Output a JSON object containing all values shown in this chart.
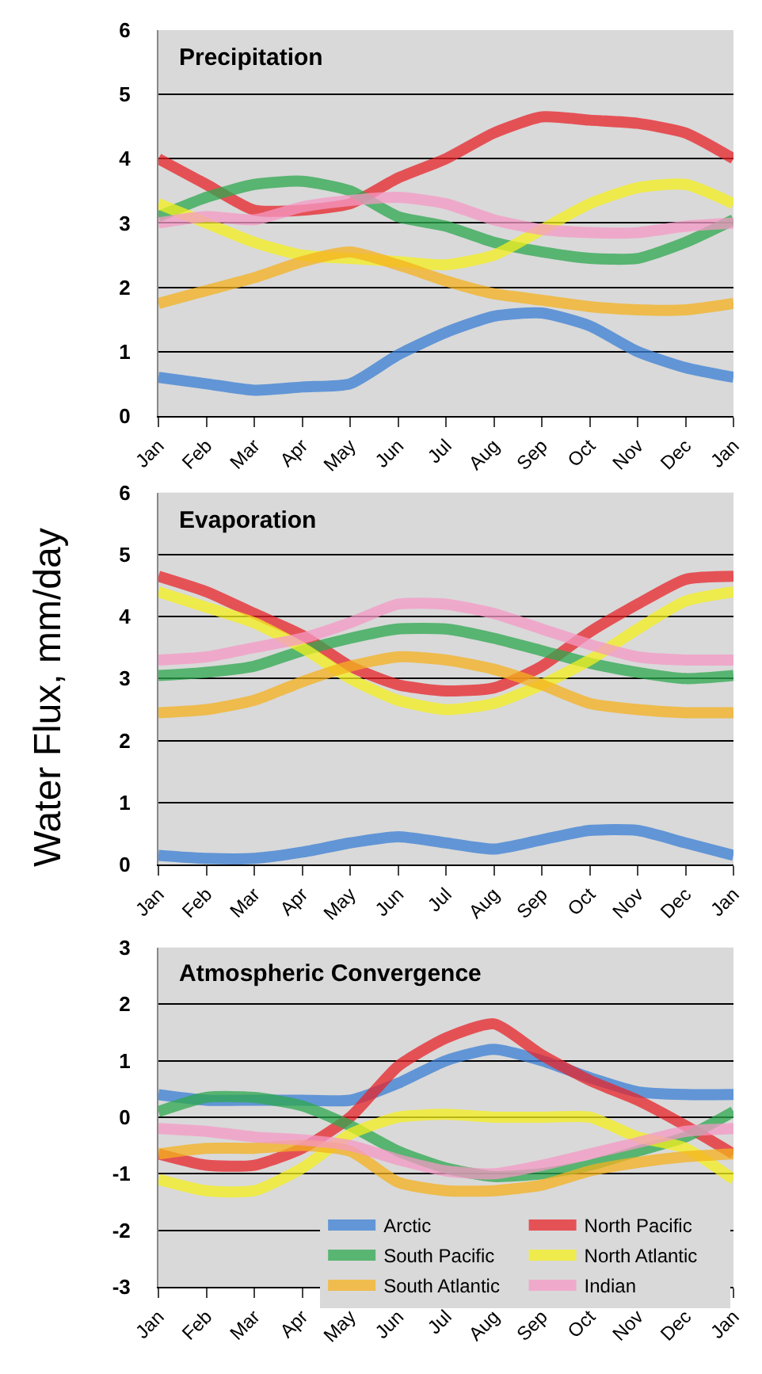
{
  "chart_data": [
    {
      "type": "line",
      "title": "Precipitation",
      "categories": [
        "Jan",
        "Feb",
        "Mar",
        "Apr",
        "May",
        "Jun",
        "Jul",
        "Aug",
        "Sep",
        "Oct",
        "Nov",
        "Dec",
        "Jan"
      ],
      "ylim": [
        0,
        6
      ],
      "yticks": [
        0,
        1,
        2,
        3,
        4,
        5,
        6
      ],
      "grid": "y",
      "marker": "none",
      "legend": false,
      "series": [
        {
          "color": "#3a7fd5",
          "values": [
            0.6,
            0.5,
            0.4,
            0.45,
            0.5,
            0.95,
            1.3,
            1.55,
            1.6,
            1.4,
            1.0,
            0.75,
            0.6
          ]
        },
        {
          "color": "#e8242a",
          "values": [
            4.0,
            3.6,
            3.2,
            3.2,
            3.3,
            3.7,
            4.0,
            4.4,
            4.65,
            4.6,
            4.55,
            4.4,
            4.0
          ]
        },
        {
          "color": "#2ea84f",
          "values": [
            3.1,
            3.4,
            3.6,
            3.65,
            3.5,
            3.1,
            2.95,
            2.7,
            2.55,
            2.45,
            2.45,
            2.7,
            3.05
          ]
        },
        {
          "color": "#f5f01e",
          "values": [
            3.3,
            3.0,
            2.7,
            2.5,
            2.45,
            2.4,
            2.35,
            2.5,
            2.9,
            3.3,
            3.55,
            3.6,
            3.3
          ]
        },
        {
          "color": "#f5b21e",
          "values": [
            1.75,
            1.95,
            2.15,
            2.4,
            2.55,
            2.35,
            2.1,
            1.9,
            1.8,
            1.7,
            1.65,
            1.65,
            1.75
          ]
        },
        {
          "color": "#f59ac6",
          "values": [
            3.0,
            3.1,
            3.05,
            3.25,
            3.35,
            3.4,
            3.3,
            3.05,
            2.9,
            2.85,
            2.85,
            2.95,
            3.0
          ]
        }
      ]
    },
    {
      "type": "line",
      "title": "Evaporation",
      "ylabel": "Water Flux, mm/day",
      "categories": [
        "Jan",
        "Feb",
        "Mar",
        "Apr",
        "May",
        "Jun",
        "Jul",
        "Aug",
        "Sep",
        "Oct",
        "Nov",
        "Dec",
        "Jan"
      ],
      "ylim": [
        0,
        6
      ],
      "yticks": [
        0,
        1,
        2,
        3,
        4,
        5,
        6
      ],
      "grid": "y",
      "marker": "none",
      "legend": false,
      "series": [
        {
          "color": "#3a7fd5",
          "values": [
            0.15,
            0.1,
            0.1,
            0.2,
            0.35,
            0.45,
            0.35,
            0.25,
            0.4,
            0.55,
            0.55,
            0.35,
            0.15
          ]
        },
        {
          "color": "#e8242a",
          "values": [
            4.65,
            4.4,
            4.05,
            3.7,
            3.2,
            2.9,
            2.8,
            2.85,
            3.2,
            3.75,
            4.2,
            4.6,
            4.65
          ]
        },
        {
          "color": "#2ea84f",
          "values": [
            3.05,
            3.1,
            3.2,
            3.45,
            3.65,
            3.8,
            3.8,
            3.65,
            3.45,
            3.25,
            3.1,
            3.0,
            3.05
          ]
        },
        {
          "color": "#f5f01e",
          "values": [
            4.4,
            4.15,
            3.9,
            3.5,
            3.0,
            2.65,
            2.5,
            2.6,
            2.9,
            3.3,
            3.8,
            4.25,
            4.4
          ]
        },
        {
          "color": "#f5b21e",
          "values": [
            2.45,
            2.5,
            2.65,
            2.95,
            3.2,
            3.35,
            3.3,
            3.15,
            2.9,
            2.6,
            2.5,
            2.45,
            2.45
          ]
        },
        {
          "color": "#f59ac6",
          "values": [
            3.3,
            3.35,
            3.5,
            3.65,
            3.9,
            4.2,
            4.2,
            4.05,
            3.8,
            3.55,
            3.35,
            3.3,
            3.3
          ]
        }
      ]
    },
    {
      "type": "line",
      "title": "Atmospheric Convergence",
      "categories": [
        "Jan",
        "Feb",
        "Mar",
        "Apr",
        "May",
        "Jun",
        "Jul",
        "Aug",
        "Sep",
        "Oct",
        "Nov",
        "Dec",
        "Jan"
      ],
      "ylim": [
        -3,
        3
      ],
      "yticks": [
        -3,
        -2,
        -1,
        0,
        1,
        2,
        3
      ],
      "grid": "y",
      "marker": "none",
      "legend": "bottom",
      "series": [
        {
          "name": "Arctic",
          "color": "#3a7fd5",
          "values": [
            0.4,
            0.3,
            0.3,
            0.3,
            0.3,
            0.6,
            1.0,
            1.2,
            1.0,
            0.7,
            0.45,
            0.4,
            0.4
          ]
        },
        {
          "name": "North Pacific",
          "color": "#e8242a",
          "values": [
            -0.65,
            -0.85,
            -0.85,
            -0.55,
            0.0,
            0.9,
            1.4,
            1.65,
            1.1,
            0.65,
            0.3,
            -0.15,
            -0.65
          ]
        },
        {
          "name": "South Pacific",
          "color": "#2ea84f",
          "values": [
            0.1,
            0.35,
            0.35,
            0.2,
            -0.15,
            -0.6,
            -0.9,
            -1.05,
            -1.0,
            -0.85,
            -0.6,
            -0.35,
            0.1
          ]
        },
        {
          "name": "North Atlantic",
          "color": "#f5f01e",
          "values": [
            -1.1,
            -1.3,
            -1.3,
            -0.9,
            -0.3,
            0.0,
            0.05,
            0.0,
            0.0,
            0.0,
            -0.35,
            -0.55,
            -1.1
          ]
        },
        {
          "name": "South Atlantic",
          "color": "#f5b21e",
          "values": [
            -0.65,
            -0.55,
            -0.55,
            -0.5,
            -0.6,
            -1.15,
            -1.3,
            -1.3,
            -1.2,
            -0.95,
            -0.8,
            -0.7,
            -0.65
          ]
        },
        {
          "name": "Indian",
          "color": "#f59ac6",
          "values": [
            -0.2,
            -0.25,
            -0.35,
            -0.4,
            -0.5,
            -0.75,
            -0.95,
            -1.0,
            -0.85,
            -0.65,
            -0.45,
            -0.25,
            -0.2
          ]
        }
      ]
    }
  ]
}
